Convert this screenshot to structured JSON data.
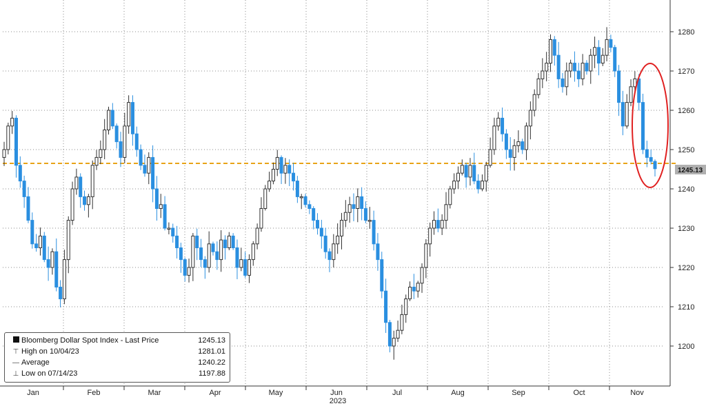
{
  "chart_data": {
    "type": "candlestick",
    "title": "",
    "xlabel": "2023",
    "ylabel": "",
    "ylim": [
      1190,
      1290
    ],
    "y_ticks": [
      1200,
      1210,
      1220,
      1230,
      1240,
      1250,
      1260,
      1270,
      1280
    ],
    "x_months": [
      "Jan",
      "Feb",
      "Mar",
      "Apr",
      "May",
      "Jun",
      "Jul",
      "Aug",
      "Sep",
      "Oct",
      "Nov"
    ],
    "year_label": "2023",
    "grid": true,
    "colors": {
      "up": "#2f2f2f",
      "down": "#2a8fe0",
      "reference_line": "#e8a317",
      "highlight_ellipse": "#e02020"
    },
    "reference_level": 1246.5,
    "last_price": 1245.13,
    "last_price_badge": "1245.13",
    "highlight": "ellipse around early-November drop, top-right",
    "legend_position": "bottom-left",
    "legend": [
      {
        "symbol": "square",
        "label": "Bloomberg Dollar Spot Index - Last Price",
        "value": "1245.13"
      },
      {
        "symbol": "T",
        "label": "High on 10/04/23",
        "value": "1281.01"
      },
      {
        "symbol": "dash",
        "label": "Average",
        "value": "1240.22"
      },
      {
        "symbol": "perp",
        "label": "Low on 07/14/23",
        "value": "1197.88"
      }
    ],
    "series": [
      {
        "name": "Bloomberg Dollar Spot Index - Last Price",
        "closes": [
          1250,
          1256,
          1258,
          1246,
          1242,
          1238,
          1232,
          1226,
          1225,
          1228,
          1222,
          1220,
          1224,
          1215,
          1212,
          1222,
          1232,
          1240,
          1243,
          1238,
          1236,
          1238,
          1246,
          1248,
          1250,
          1255,
          1260,
          1256,
          1252,
          1248,
          1256,
          1262,
          1254,
          1250,
          1246,
          1244,
          1248,
          1240,
          1235,
          1236,
          1230,
          1230,
          1228,
          1225,
          1222,
          1218,
          1220,
          1228,
          1225,
          1222,
          1220,
          1226,
          1224,
          1222,
          1227,
          1225,
          1228,
          1225,
          1220,
          1222,
          1218,
          1222,
          1226,
          1230,
          1235,
          1240,
          1242,
          1245,
          1248,
          1244,
          1246,
          1244,
          1242,
          1238,
          1238,
          1236,
          1235,
          1232,
          1230,
          1228,
          1224,
          1222,
          1226,
          1228,
          1232,
          1234,
          1236,
          1235,
          1238,
          1235,
          1232,
          1232,
          1226,
          1222,
          1214,
          1206,
          1200,
          1202,
          1204,
          1208,
          1212,
          1215,
          1214,
          1216,
          1220,
          1226,
          1230,
          1232,
          1230,
          1232,
          1236,
          1240,
          1242,
          1244,
          1246,
          1243,
          1246,
          1242,
          1240,
          1242,
          1246,
          1250,
          1256,
          1258,
          1254,
          1250,
          1248,
          1251,
          1252,
          1250,
          1256,
          1260,
          1264,
          1268,
          1270,
          1272,
          1278,
          1274,
          1268,
          1266,
          1270,
          1272,
          1270,
          1268,
          1272,
          1270,
          1274,
          1276,
          1272,
          1274,
          1278,
          1276,
          1270,
          1262,
          1256,
          1262,
          1266,
          1268,
          1262,
          1250,
          1248,
          1247,
          1245.13
        ]
      }
    ]
  }
}
